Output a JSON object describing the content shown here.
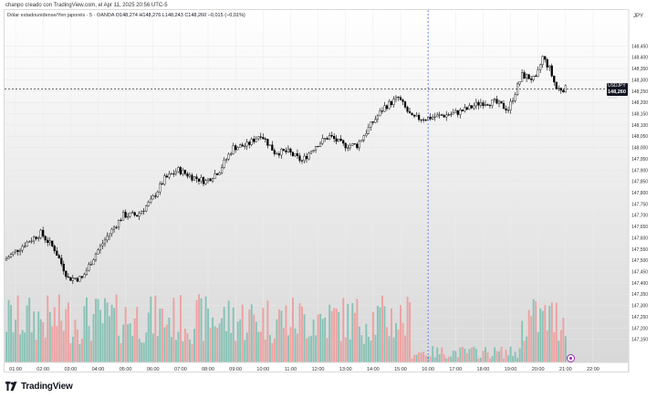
{
  "header": {
    "creator_line": "chanpo creado con TradingView.com, el Apr 11, 2025 20:56 UTC-5"
  },
  "legend": {
    "symbol": "Dólar estadounidense/Yen japonés · 5 · OANDA",
    "open": "O148,274",
    "high": "H148,276",
    "low": "L148,243",
    "close": "C148,260",
    "change": "−0,015 (−0,01%)"
  },
  "axis": {
    "currency": "JPY",
    "y_ticks": [
      "148,450",
      "148,400",
      "148,350",
      "148,300",
      "148,250",
      "148,200",
      "148,150",
      "148,100",
      "148,050",
      "148,000",
      "147,950",
      "147,900",
      "147,850",
      "147,800",
      "147,750",
      "147,700",
      "147,650",
      "147,600",
      "147,550",
      "147,500",
      "147,450",
      "147,400",
      "147,350",
      "147,300",
      "147,250",
      "147,200",
      "147,150"
    ],
    "x_ticks": [
      "01:00",
      "02:00",
      "03:00",
      "04:00",
      "05:00",
      "06:00",
      "07:00",
      "08:00",
      "09:00",
      "10:00",
      "11:00",
      "12:00",
      "13:00",
      "14:00",
      "15:00",
      "16:00",
      "17:00",
      "18:00",
      "19:00",
      "20:00",
      "21:00",
      "22:00"
    ]
  },
  "price_tag": {
    "symbol": "USDJPY",
    "price": "148,260",
    "timer": "03:48"
  },
  "footer": {
    "brand": "TradingView"
  },
  "colors": {
    "up_volume": "#7ebfb1",
    "down_volume": "#ee9a9a",
    "candle_up": "#ffffff",
    "candle_down": "#000000",
    "price_line": "#131722",
    "crosshair": "#2962ff"
  },
  "chart_data": {
    "type": "candlestick",
    "ylim": [
      147.1,
      148.5
    ],
    "x_range": [
      "00:40",
      "22:20"
    ],
    "key_points": [
      {
        "time": "00:40",
        "price": 147.5
      },
      {
        "time": "01:30",
        "price": 147.58
      },
      {
        "time": "02:00",
        "price": 147.62
      },
      {
        "time": "02:30",
        "price": 147.55
      },
      {
        "time": "03:00",
        "price": 147.42
      },
      {
        "time": "03:30",
        "price": 147.42
      },
      {
        "time": "04:00",
        "price": 147.53
      },
      {
        "time": "04:30",
        "price": 147.62
      },
      {
        "time": "05:00",
        "price": 147.7
      },
      {
        "time": "05:30",
        "price": 147.7
      },
      {
        "time": "06:00",
        "price": 147.76
      },
      {
        "time": "06:30",
        "price": 147.86
      },
      {
        "time": "07:00",
        "price": 147.9
      },
      {
        "time": "07:30",
        "price": 147.87
      },
      {
        "time": "08:00",
        "price": 147.85
      },
      {
        "time": "08:30",
        "price": 147.9
      },
      {
        "time": "09:00",
        "price": 148.0
      },
      {
        "time": "09:30",
        "price": 148.01
      },
      {
        "time": "10:00",
        "price": 148.06
      },
      {
        "time": "10:30",
        "price": 147.98
      },
      {
        "time": "11:00",
        "price": 147.98
      },
      {
        "time": "11:30",
        "price": 147.94
      },
      {
        "time": "12:00",
        "price": 148.01
      },
      {
        "time": "12:30",
        "price": 148.05
      },
      {
        "time": "13:00",
        "price": 148.01
      },
      {
        "time": "13:30",
        "price": 148.01
      },
      {
        "time": "14:00",
        "price": 148.1
      },
      {
        "time": "14:30",
        "price": 148.18
      },
      {
        "time": "15:00",
        "price": 148.22
      },
      {
        "time": "15:30",
        "price": 148.13
      },
      {
        "time": "16:00",
        "price": 148.13
      },
      {
        "time": "16:30",
        "price": 148.14
      },
      {
        "time": "17:00",
        "price": 148.15
      },
      {
        "time": "17:30",
        "price": 148.17
      },
      {
        "time": "18:00",
        "price": 148.2
      },
      {
        "time": "18:30",
        "price": 148.2
      },
      {
        "time": "19:00",
        "price": 148.17
      },
      {
        "time": "19:30",
        "price": 148.32
      },
      {
        "time": "20:00",
        "price": 148.3
      },
      {
        "time": "20:15",
        "price": 148.4
      },
      {
        "time": "20:30",
        "price": 148.35
      },
      {
        "time": "20:45",
        "price": 148.26
      },
      {
        "time": "21:00",
        "price": 148.26
      }
    ],
    "last_price": 148.26,
    "crosshair_time": "16:00"
  }
}
